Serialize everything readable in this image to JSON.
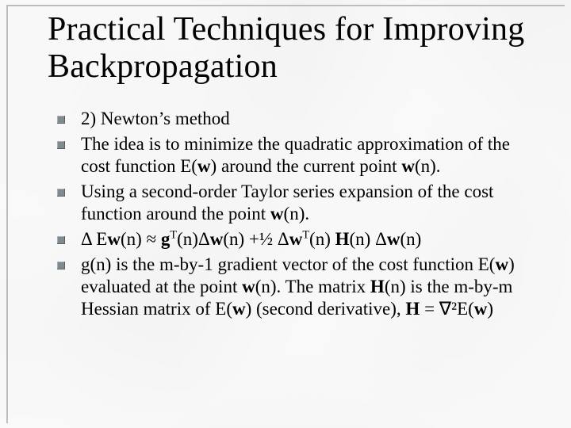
{
  "slide": {
    "title": "Practical Techniques for Improving Backpropagation",
    "title_fontsize": 42,
    "body_fontsize": 23,
    "bullet_color": "#7f8a8f",
    "text_color": "#000000",
    "frame_color": "#bdbdbd",
    "background_palette": [
      "#e6e6e6",
      "#f2f2f2",
      "#e0e0e0",
      "#f4f4f4",
      "#e2e2e2",
      "#f0f0f0"
    ],
    "items": [
      {
        "html": "2) Newton’s method"
      },
      {
        "html": "The idea is to minimize the quadratic approximation of the cost function E(<span class=\"bold\">w</span>) around the current point <span class=\"bold\">w</span>(n)."
      },
      {
        "html": "Using a second-order Taylor series expansion of the cost function around the point <span class=\"bold\">w</span>(n)."
      },
      {
        "html": "Δ E<span class=\"bold\">w</span>(n) ≈  <span class=\"bold\">g</span><sup>T</sup>(n)Δ<span class=\"bold\">w</span>(n) +½ Δ<span class=\"bold\">w</span><sup>T</sup>(n) <span class=\"bold\">H</span>(n) Δ<span class=\"bold\">w</span>(n)"
      },
      {
        "html": "g(n) is the m-by-1 gradient vector of the cost function E(<span class=\"bold\">w</span>) evaluated at the point <span class=\"bold\">w</span>(n). The matrix <span class=\"bold\">H</span>(n) is the m-by-m Hessian matrix of E(<span class=\"bold\">w</span>) (second derivative), <span class=\"bold\">H</span> = ∇²E(<span class=\"bold\">w</span>)"
      }
    ]
  }
}
